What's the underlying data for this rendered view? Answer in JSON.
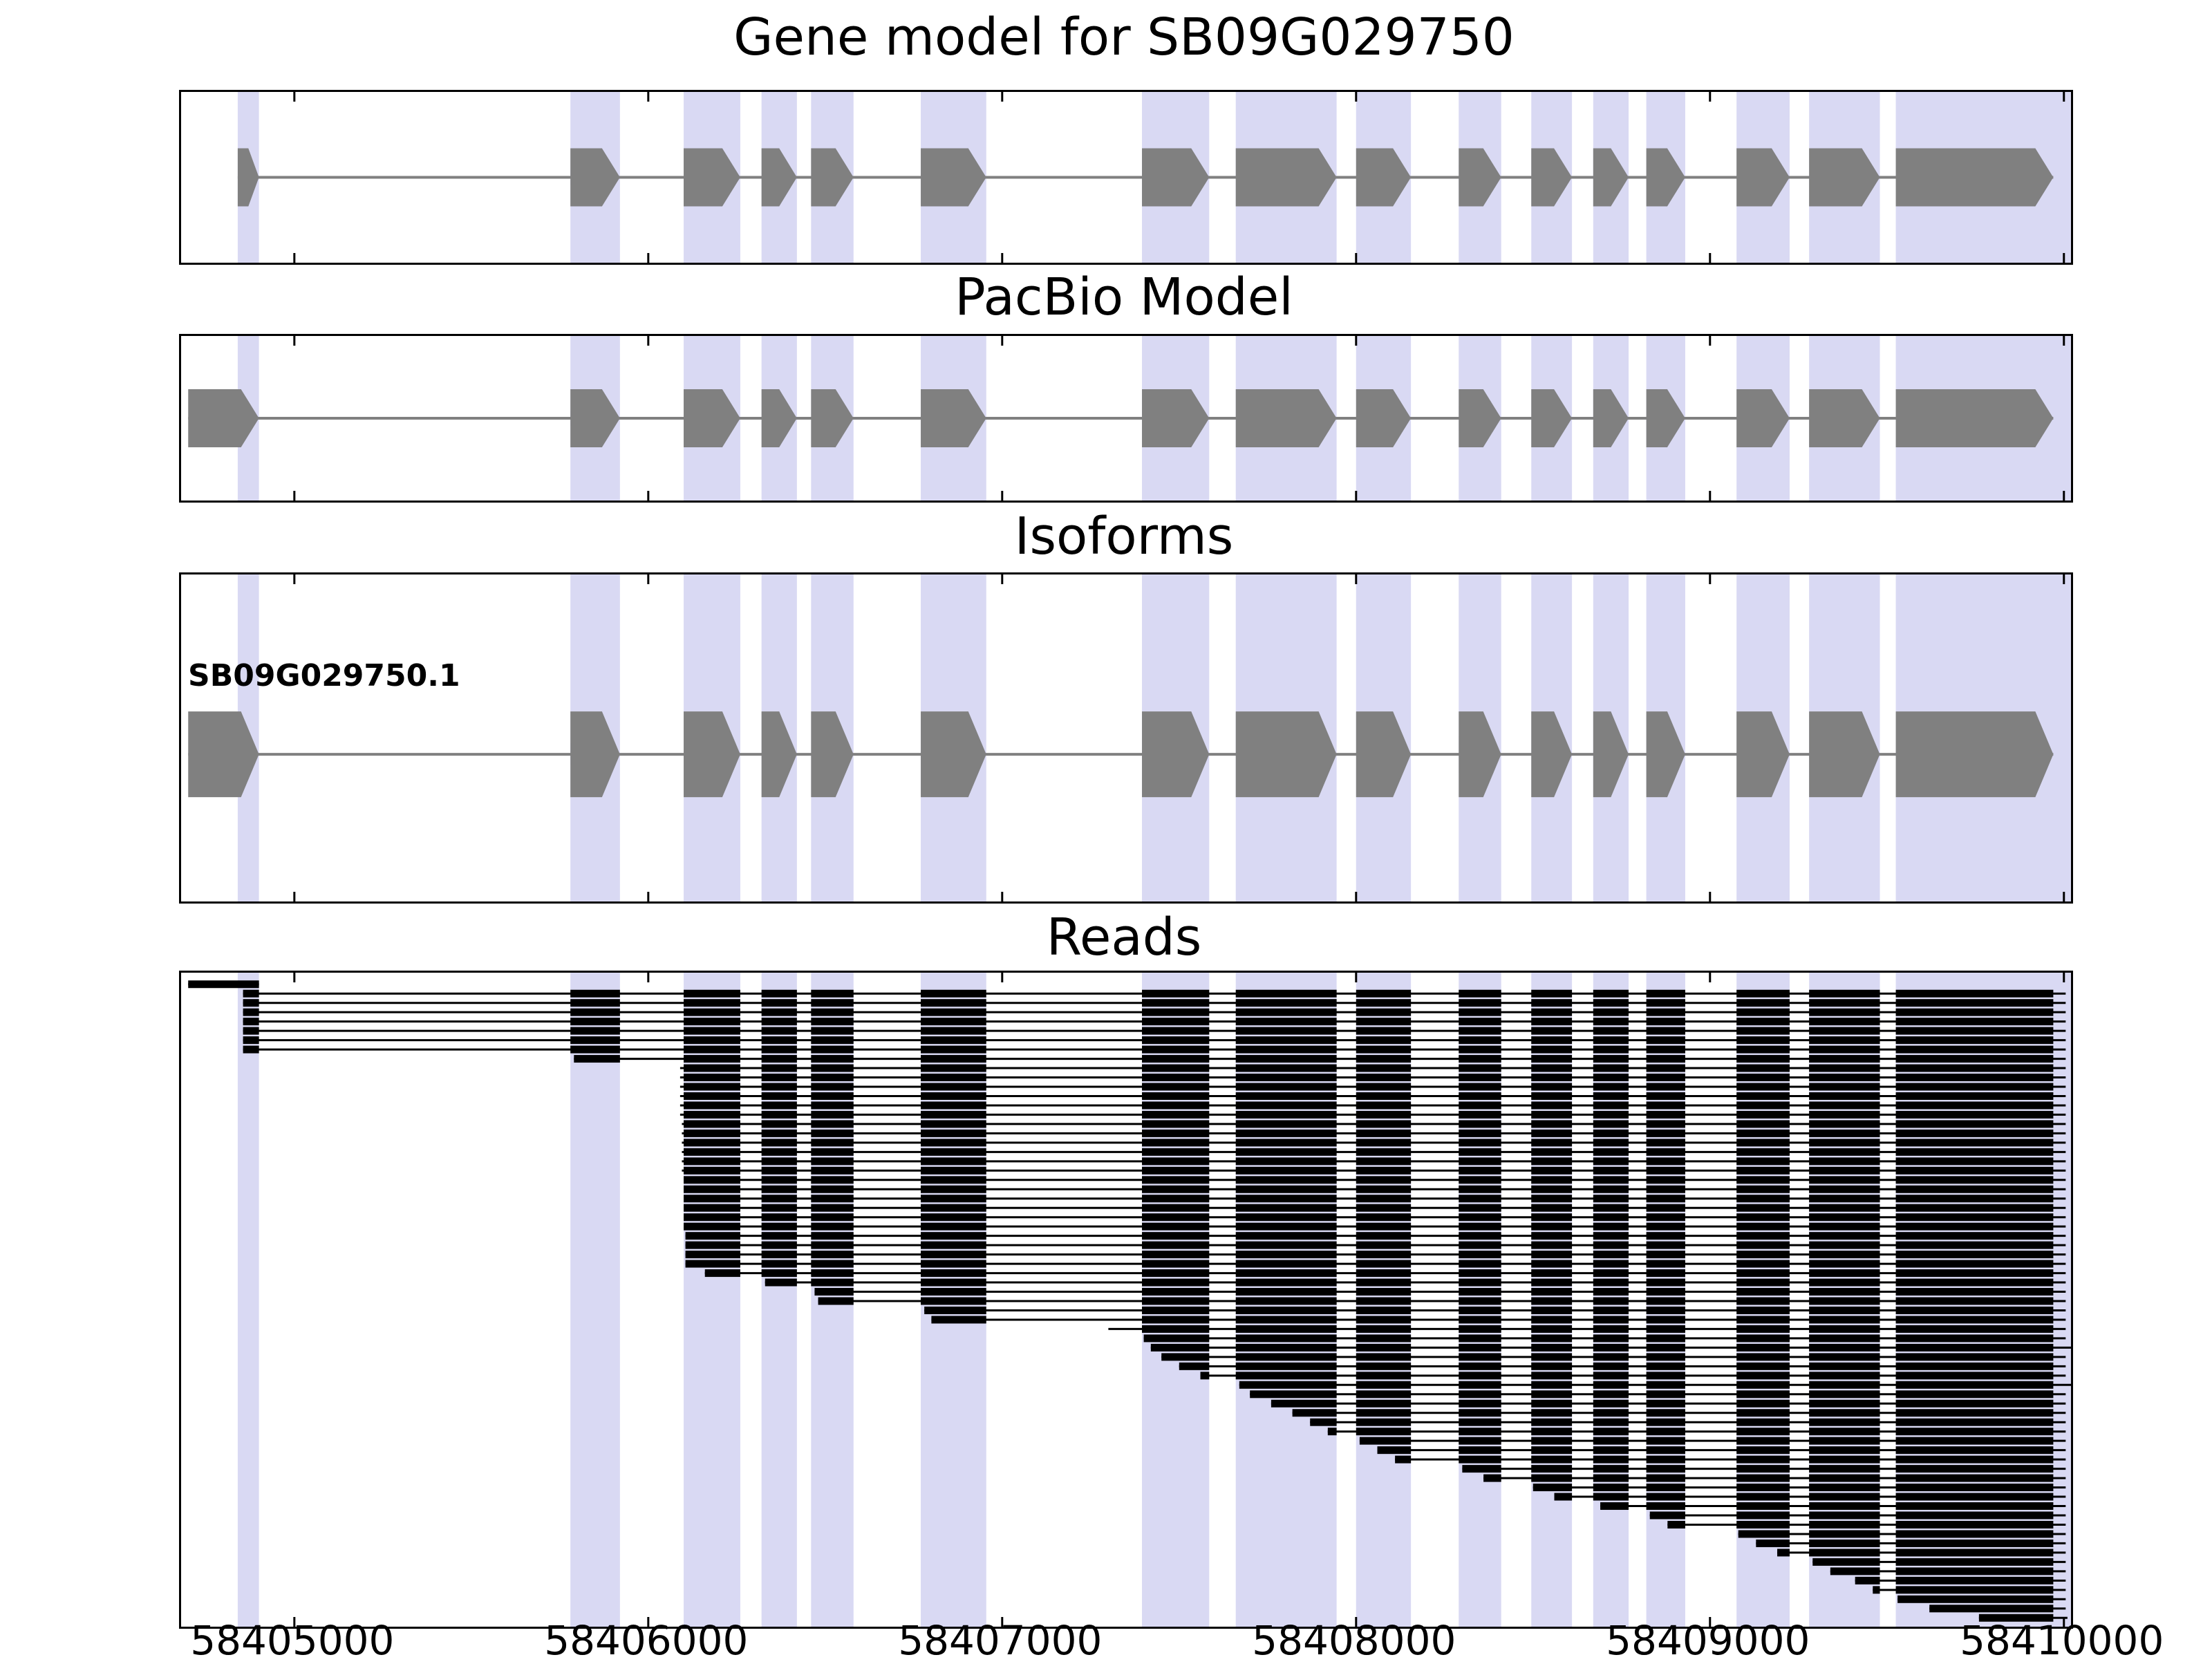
{
  "figure": {
    "titles": {
      "gene_model": "Gene model for SB09G029750",
      "pacbio": "PacBio Model",
      "isoforms": "Isoforms",
      "reads": "Reads"
    }
  },
  "chart_data": {
    "type": "genome-browser-tracks",
    "title": "Gene model for SB09G029750",
    "x_range": [
      58404680,
      58410020
    ],
    "x_ticks": [
      58405000,
      58406000,
      58407000,
      58408000,
      58409000,
      58410000
    ],
    "grid": false,
    "colors": {
      "exon": "#808080",
      "intron_line": "#808080",
      "read": "#000000",
      "band": "#d9d9f3",
      "axis": "#000000",
      "background": "#ffffff"
    },
    "exon_bands": [
      [
        58404840,
        58404900
      ],
      [
        58405780,
        58405920
      ],
      [
        58406100,
        58406260
      ],
      [
        58406320,
        58406420
      ],
      [
        58406460,
        58406580
      ],
      [
        58406770,
        58406955
      ],
      [
        58407395,
        58407585
      ],
      [
        58407660,
        58407945
      ],
      [
        58408000,
        58408155
      ],
      [
        58408290,
        58408410
      ],
      [
        58408495,
        58408610
      ],
      [
        58408670,
        58408770
      ],
      [
        58408820,
        58408930
      ],
      [
        58409075,
        58409225
      ],
      [
        58409280,
        58409480
      ],
      [
        58409525,
        58410020
      ]
    ],
    "panels": {
      "gene_model": {
        "title": "Gene model for SB09G029750",
        "strand": "+",
        "exons": [
          [
            58404840,
            58404900
          ],
          [
            58405780,
            58405920
          ],
          [
            58406100,
            58406260
          ],
          [
            58406320,
            58406420
          ],
          [
            58406460,
            58406580
          ],
          [
            58406770,
            58406955
          ],
          [
            58407395,
            58407585
          ],
          [
            58407660,
            58407945
          ],
          [
            58408000,
            58408155
          ],
          [
            58408290,
            58408410
          ],
          [
            58408495,
            58408610
          ],
          [
            58408670,
            58408770
          ],
          [
            58408820,
            58408930
          ],
          [
            58409075,
            58409225
          ],
          [
            58409280,
            58409480
          ],
          [
            58409525,
            58409970
          ]
        ]
      },
      "pacbio": {
        "title": "PacBio Model",
        "strand": "+",
        "exons": [
          [
            58404700,
            58404900
          ],
          [
            58405780,
            58405920
          ],
          [
            58406100,
            58406260
          ],
          [
            58406320,
            58406420
          ],
          [
            58406460,
            58406580
          ],
          [
            58406770,
            58406955
          ],
          [
            58407395,
            58407585
          ],
          [
            58407660,
            58407945
          ],
          [
            58408000,
            58408155
          ],
          [
            58408290,
            58408410
          ],
          [
            58408495,
            58408610
          ],
          [
            58408670,
            58408770
          ],
          [
            58408820,
            58408930
          ],
          [
            58409075,
            58409225
          ],
          [
            58409280,
            58409480
          ],
          [
            58409525,
            58409970
          ]
        ]
      },
      "isoforms": {
        "title": "Isoforms",
        "items": [
          {
            "label": "SB09G029750.1",
            "strand": "+",
            "exons": [
              [
                58404700,
                58404900
              ],
              [
                58405780,
                58405920
              ],
              [
                58406100,
                58406260
              ],
              [
                58406320,
                58406420
              ],
              [
                58406460,
                58406580
              ],
              [
                58406770,
                58406955
              ],
              [
                58407395,
                58407585
              ],
              [
                58407660,
                58407945
              ],
              [
                58408000,
                58408155
              ],
              [
                58408290,
                58408410
              ],
              [
                58408495,
                58408610
              ],
              [
                58408670,
                58408770
              ],
              [
                58408820,
                58408930
              ],
              [
                58409075,
                58409225
              ],
              [
                58409280,
                58409480
              ],
              [
                58409525,
                58409970
              ]
            ]
          }
        ]
      },
      "reads": {
        "title": "Reads",
        "reads": [
          [
            58404700,
            58404900
          ],
          [
            58404855,
            58410005
          ],
          [
            58404855,
            58410005
          ],
          [
            58404855,
            58410005
          ],
          [
            58404855,
            58410005
          ],
          [
            58404855,
            58410005
          ],
          [
            58404855,
            58410005
          ],
          [
            58404855,
            58410005
          ],
          [
            58405790,
            58410005
          ],
          [
            58406090,
            58410005
          ],
          [
            58406090,
            58410005
          ],
          [
            58406090,
            58410005
          ],
          [
            58406090,
            58410005
          ],
          [
            58406090,
            58410005
          ],
          [
            58406090,
            58410005
          ],
          [
            58406095,
            58410005
          ],
          [
            58406095,
            58410005
          ],
          [
            58406095,
            58410005
          ],
          [
            58406095,
            58410005
          ],
          [
            58406095,
            58410005
          ],
          [
            58406095,
            58410005
          ],
          [
            58406100,
            58410005
          ],
          [
            58406100,
            58410005
          ],
          [
            58406100,
            58410005
          ],
          [
            58406100,
            58410005
          ],
          [
            58406100,
            58410005
          ],
          [
            58406100,
            58410005
          ],
          [
            58406105,
            58410005
          ],
          [
            58406105,
            58410005
          ],
          [
            58406105,
            58410005
          ],
          [
            58406105,
            58410005
          ],
          [
            58406160,
            58410005
          ],
          [
            58406330,
            58410005
          ],
          [
            58406470,
            58410005
          ],
          [
            58406480,
            58410005
          ],
          [
            58406780,
            58410005
          ],
          [
            58406800,
            58410005
          ],
          [
            58407300,
            58410005
          ],
          [
            58407400,
            58410005
          ],
          [
            58407420,
            58410020
          ],
          [
            58407450,
            58410005
          ],
          [
            58407500,
            58410005
          ],
          [
            58407560,
            58410005
          ],
          [
            58407670,
            58410020
          ],
          [
            58407700,
            58410005
          ],
          [
            58407760,
            58410005
          ],
          [
            58407820,
            58410005
          ],
          [
            58407870,
            58410005
          ],
          [
            58407920,
            58410005
          ],
          [
            58408010,
            58410005
          ],
          [
            58408060,
            58410005
          ],
          [
            58408110,
            58410005
          ],
          [
            58408300,
            58410005
          ],
          [
            58408360,
            58410005
          ],
          [
            58408500,
            58410005
          ],
          [
            58408560,
            58410005
          ],
          [
            58408690,
            58410005
          ],
          [
            58408830,
            58410005
          ],
          [
            58408880,
            58410005
          ],
          [
            58409080,
            58410005
          ],
          [
            58409130,
            58410005
          ],
          [
            58409190,
            58410005
          ],
          [
            58409290,
            58410005
          ],
          [
            58409340,
            58410005
          ],
          [
            58409410,
            58410005
          ],
          [
            58409460,
            58410005
          ],
          [
            58409530,
            58410005
          ],
          [
            58409620,
            58410005
          ],
          [
            58409760,
            58410010
          ]
        ]
      }
    }
  }
}
